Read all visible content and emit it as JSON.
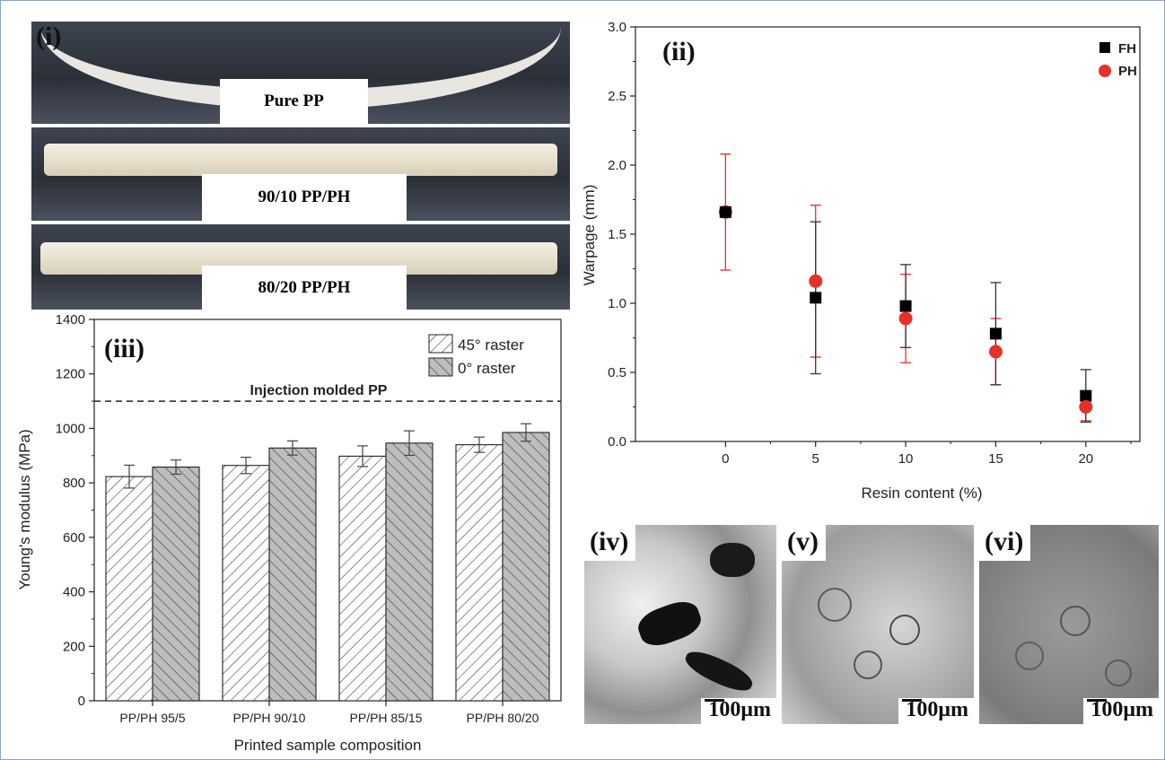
{
  "panels": {
    "i": {
      "tag": "(i)",
      "labels": [
        "Pure PP",
        "90/10 PP/PH",
        "80/20 PP/PH"
      ]
    },
    "ii": {
      "tag": "(ii)"
    },
    "iii": {
      "tag": "(iii)"
    },
    "iv": {
      "tag": "(iv)",
      "scale": "100μm"
    },
    "v": {
      "tag": "(v)",
      "scale": "100μm"
    },
    "vi": {
      "tag": "(vi)",
      "scale": "100μm"
    }
  },
  "chart_data": [
    {
      "id": "warpage",
      "type": "scatter",
      "xlabel": "Resin content (%)",
      "ylabel": "Warpage (mm)",
      "xlim": [
        -5,
        23
      ],
      "ylim": [
        0,
        3.0
      ],
      "xticks": [
        0,
        5,
        10,
        15,
        20
      ],
      "yticks": [
        0.0,
        0.5,
        1.0,
        1.5,
        2.0,
        2.5,
        3.0
      ],
      "ytick_labels": [
        "0.0",
        "0.5",
        "1.0",
        "1.5",
        "2.0",
        "2.5",
        "3.0"
      ],
      "legend": "top-right",
      "series": [
        {
          "name": "FH",
          "marker": "square",
          "color": "#000000",
          "errcolor": "#333333",
          "x": [
            0,
            5,
            10,
            15,
            20
          ],
          "y": [
            1.66,
            1.04,
            0.98,
            0.78,
            0.33
          ],
          "err": [
            0.0,
            0.55,
            0.3,
            0.37,
            0.19
          ]
        },
        {
          "name": "PH",
          "marker": "circle",
          "color": "#e8302a",
          "errcolor": "#e8302a",
          "x": [
            0,
            5,
            10,
            15,
            20
          ],
          "y": [
            1.66,
            1.16,
            0.89,
            0.65,
            0.25
          ],
          "err": [
            0.42,
            0.55,
            0.32,
            0.24,
            0.1
          ]
        }
      ]
    },
    {
      "id": "modulus",
      "type": "bar",
      "xlabel": "Printed sample composition",
      "ylabel": "Young's modulus (MPa)",
      "ylim": [
        0,
        1400
      ],
      "yticks": [
        0,
        200,
        400,
        600,
        800,
        1000,
        1200,
        1400
      ],
      "categories": [
        "PP/PH 95/5",
        "PP/PH 90/10",
        "PP/PH 85/15",
        "PP/PH 80/20"
      ],
      "legend": "top-right",
      "series": [
        {
          "name": "45° raster",
          "values": [
            823,
            864,
            898,
            940
          ],
          "err": [
            42,
            30,
            38,
            28
          ],
          "fill": "#ffffff"
        },
        {
          "name": "0° raster",
          "values": [
            858,
            928,
            946,
            985
          ],
          "err": [
            26,
            26,
            45,
            32
          ],
          "fill": "#bdbdbd"
        }
      ],
      "reference_line": {
        "label": "Injection molded PP",
        "value": 1100
      }
    }
  ]
}
